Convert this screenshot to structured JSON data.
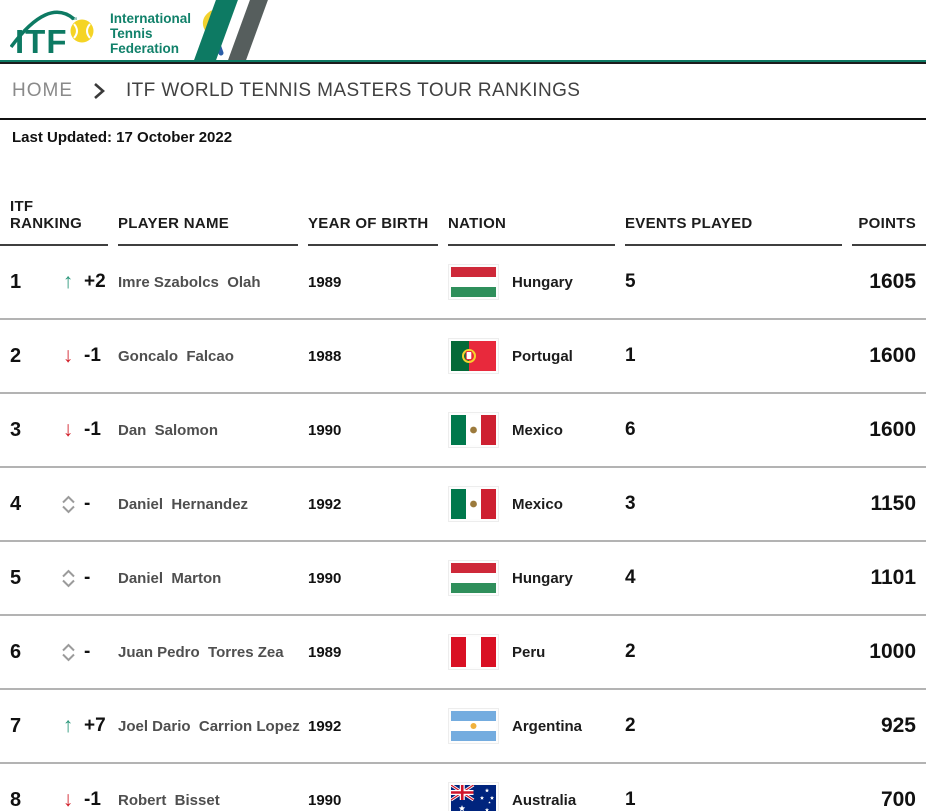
{
  "brand": {
    "logo_text": "ITF",
    "org_lines": [
      "International",
      "Tennis",
      "Federation"
    ],
    "colors": {
      "teal": "#0d7a63",
      "ball_yellow": "#f5d425",
      "stripe_gray": "#565e5d",
      "ribbon_yellow": "#f2d22e",
      "ribbon_blue": "#2b5da8",
      "up_green": "#2b977b",
      "down_red": "#d1202a",
      "no_change_gray": "#9b9b9b"
    }
  },
  "breadcrumb": {
    "home": "HOME",
    "current": "ITF WORLD TENNIS MASTERS TOUR RANKINGS"
  },
  "last_updated": "Last Updated: 17 October 2022",
  "table": {
    "headers": [
      "ITF RANKING",
      "PLAYER NAME",
      "YEAR OF BIRTH",
      "NATION",
      "EVENTS PLAYED",
      "POINTS"
    ],
    "rows": [
      {
        "rank": "1",
        "movement": "up",
        "change": "+2",
        "player": "Imre Szabolcs  Olah",
        "year": "1989",
        "flag": "hungary",
        "nation": "Hungary",
        "events": "5",
        "points": "1605"
      },
      {
        "rank": "2",
        "movement": "down",
        "change": "-1",
        "player": "Goncalo  Falcao",
        "year": "1988",
        "flag": "portugal",
        "nation": "Portugal",
        "events": "1",
        "points": "1600"
      },
      {
        "rank": "3",
        "movement": "down",
        "change": "-1",
        "player": "Dan  Salomon",
        "year": "1990",
        "flag": "mexico",
        "nation": "Mexico",
        "events": "6",
        "points": "1600"
      },
      {
        "rank": "4",
        "movement": "none",
        "change": "-",
        "player": "Daniel  Hernandez",
        "year": "1992",
        "flag": "mexico",
        "nation": "Mexico",
        "events": "3",
        "points": "1150"
      },
      {
        "rank": "5",
        "movement": "none",
        "change": "-",
        "player": "Daniel  Marton",
        "year": "1990",
        "flag": "hungary",
        "nation": "Hungary",
        "events": "4",
        "points": "1101"
      },
      {
        "rank": "6",
        "movement": "none",
        "change": "-",
        "player": "Juan Pedro  Torres Zea",
        "year": "1989",
        "flag": "peru",
        "nation": "Peru",
        "events": "2",
        "points": "1000"
      },
      {
        "rank": "7",
        "movement": "up",
        "change": "+7",
        "player": "Joel Dario  Carrion Lopez",
        "year": "1992",
        "flag": "argentina",
        "nation": "Argentina",
        "events": "2",
        "points": "925"
      },
      {
        "rank": "8",
        "movement": "down",
        "change": "-1",
        "player": "Robert  Bisset",
        "year": "1990",
        "flag": "australia",
        "nation": "Australia",
        "events": "1",
        "points": "700"
      }
    ]
  }
}
